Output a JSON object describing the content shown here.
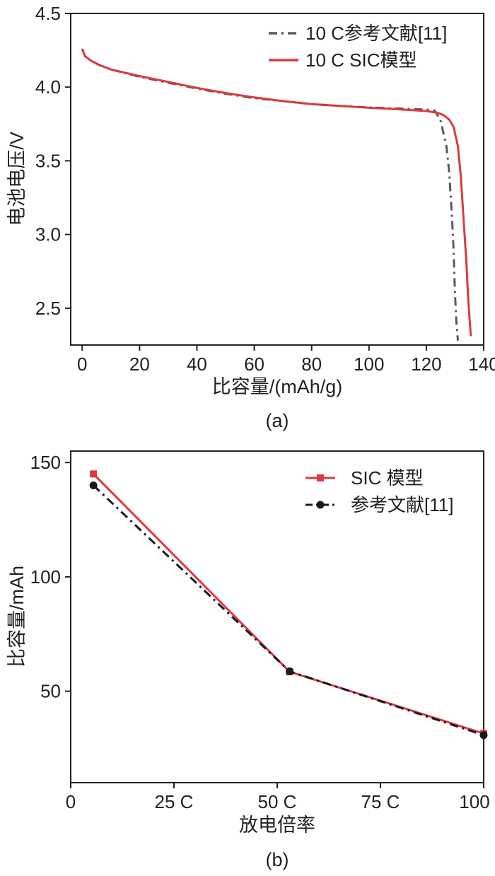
{
  "chart_data": [
    {
      "type": "line",
      "xlabel": "比容量/(mAh/g)",
      "ylabel": "电池电压/V",
      "caption": "(a)",
      "xlim": [
        -4,
        140
      ],
      "ylim": [
        2.25,
        4.5
      ],
      "xticks": [
        "0",
        "20",
        "40",
        "60",
        "80",
        "100",
        "120",
        "140"
      ],
      "yticks": [
        "2.5",
        "3.0",
        "3.5",
        "4.0",
        "4.5"
      ],
      "legend_position": "top-right",
      "grid": false,
      "series": [
        {
          "name": "10 C参考文献[11]",
          "color": "#5a5a5a",
          "style": "dashdot",
          "x": [
            0,
            1,
            3,
            6,
            10,
            20,
            30,
            40,
            50,
            60,
            70,
            80,
            90,
            100,
            110,
            120,
            123,
            125,
            127,
            128,
            129,
            129.5,
            130,
            130.5,
            131
          ],
          "y": [
            4.26,
            4.21,
            4.18,
            4.15,
            4.12,
            4.07,
            4.03,
            3.99,
            3.955,
            3.925,
            3.905,
            3.885,
            3.872,
            3.862,
            3.855,
            3.848,
            3.84,
            3.77,
            3.6,
            3.42,
            3.1,
            2.9,
            2.6,
            2.4,
            2.28
          ]
        },
        {
          "name": "10 C SIC模型",
          "color": "#d93a40",
          "style": "solid",
          "x": [
            0,
            1,
            3,
            6,
            10,
            20,
            30,
            40,
            50,
            60,
            70,
            80,
            90,
            100,
            110,
            120,
            124,
            126,
            128,
            129.5,
            131,
            132,
            133,
            134,
            134.5,
            135,
            135.5
          ],
          "y": [
            4.26,
            4.21,
            4.18,
            4.15,
            4.12,
            4.075,
            4.035,
            3.995,
            3.96,
            3.93,
            3.905,
            3.885,
            3.872,
            3.86,
            3.85,
            3.838,
            3.825,
            3.81,
            3.78,
            3.73,
            3.6,
            3.4,
            3.1,
            2.8,
            2.6,
            2.45,
            2.31
          ]
        }
      ]
    },
    {
      "type": "line",
      "xlabel": "放电倍率",
      "ylabel": "比容量/mAh",
      "caption": "(b)",
      "xlim": [
        0,
        100
      ],
      "ylim": [
        10,
        155
      ],
      "xticks": [
        "0",
        "25 C",
        "50 C",
        "75 C",
        "100 C"
      ],
      "yticks": [
        "50",
        "100",
        "150"
      ],
      "legend_position": "top-right",
      "grid": false,
      "series": [
        {
          "name": "SIC 模型",
          "color": "#d93a40",
          "style": "solid",
          "marker": "square",
          "x": [
            5.5,
            53,
            100
          ],
          "y": [
            145,
            58.5,
            31.5
          ]
        },
        {
          "name": "参考文献[11]",
          "color": "#1a1a1a",
          "style": "dashdot",
          "marker": "circle",
          "x": [
            5.5,
            53,
            100
          ],
          "y": [
            140,
            58.7,
            30.8
          ]
        }
      ]
    }
  ]
}
